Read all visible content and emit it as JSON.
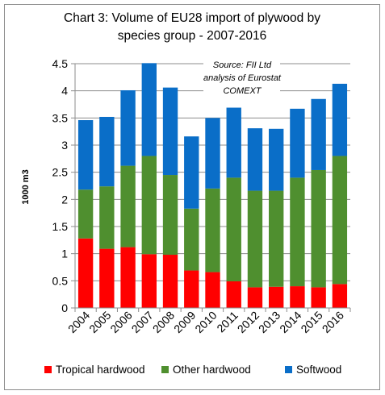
{
  "chart_data": {
    "type": "bar",
    "stacked": true,
    "title_lines": [
      "Chart 3: Volume of EU28 import of plywood by",
      "species group - 2007-2016"
    ],
    "ylabel": "1000 m3",
    "xlabel": "",
    "ylim": [
      0,
      4.5
    ],
    "yticks": [
      "0",
      "0.5",
      "1",
      "1.5",
      "2",
      "2.5",
      "3",
      "3.5",
      "4",
      "4.5"
    ],
    "grid": true,
    "legend_position": "bottom",
    "annotation_lines": [
      "Source: FII Ltd",
      "analysis of Eurostat",
      "COMEXT"
    ],
    "categories": [
      "2004",
      "2005",
      "2006",
      "2007",
      "2008",
      "2009",
      "2010",
      "2011",
      "2012",
      "2013",
      "2014",
      "2015",
      "2016"
    ],
    "series": [
      {
        "name": "Tropical hardwood",
        "color": "#ff0000",
        "values": [
          1.28,
          1.09,
          1.12,
          0.99,
          0.98,
          0.69,
          0.66,
          0.49,
          0.38,
          0.39,
          0.4,
          0.38,
          0.44
        ]
      },
      {
        "name": "Other hardwood",
        "color": "#4f8f2f",
        "values": [
          0.9,
          1.15,
          1.5,
          1.81,
          1.47,
          1.14,
          1.54,
          1.91,
          1.78,
          1.77,
          2.0,
          2.16,
          2.36
        ]
      },
      {
        "name": "Softwood",
        "color": "#0a6ec8",
        "values": [
          1.28,
          1.28,
          1.39,
          1.71,
          1.61,
          1.33,
          1.3,
          1.29,
          1.15,
          1.14,
          1.27,
          1.31,
          1.33
        ]
      }
    ]
  }
}
